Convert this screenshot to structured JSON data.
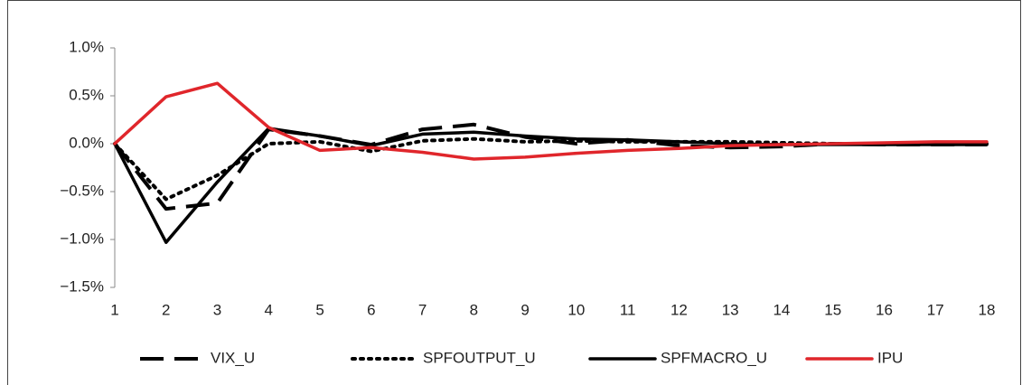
{
  "chart_data": {
    "type": "line",
    "categories": [
      "1",
      "2",
      "3",
      "4",
      "5",
      "6",
      "7",
      "8",
      "9",
      "10",
      "11",
      "12",
      "13",
      "14",
      "15",
      "16",
      "17",
      "18"
    ],
    "series": [
      {
        "name": "VIX_U",
        "color": "#000000",
        "line_style": "dashed",
        "values": [
          0,
          -0.68,
          -0.62,
          0.15,
          0.08,
          -0.01,
          0.15,
          0.2,
          0.07,
          0.0,
          0.04,
          -0.02,
          -0.04,
          -0.03,
          0.0,
          -0.01,
          -0.01,
          -0.01
        ]
      },
      {
        "name": "SPFOUTPUT_U",
        "color": "#000000",
        "line_style": "dotted",
        "values": [
          0,
          -0.58,
          -0.33,
          0.0,
          0.02,
          -0.08,
          0.03,
          0.05,
          0.02,
          0.03,
          0.02,
          0.02,
          0.02,
          0.01,
          0.0,
          0.0,
          0.0,
          0.0
        ]
      },
      {
        "name": "SPFMACRO_U",
        "color": "#000000",
        "line_style": "solid",
        "values": [
          0,
          -1.03,
          -0.4,
          0.16,
          0.08,
          -0.02,
          0.1,
          0.12,
          0.08,
          0.05,
          0.04,
          0.02,
          0.0,
          -0.01,
          -0.01,
          -0.01,
          -0.01,
          -0.01
        ]
      },
      {
        "name": "IPU",
        "color": "#e0262b",
        "line_style": "solid",
        "values": [
          0,
          0.49,
          0.63,
          0.17,
          -0.07,
          -0.04,
          -0.09,
          -0.16,
          -0.14,
          -0.1,
          -0.07,
          -0.05,
          -0.02,
          -0.01,
          0.0,
          0.01,
          0.02,
          0.02
        ]
      }
    ],
    "ylim": [
      -1.5,
      1.0
    ],
    "yticks": [
      {
        "value": -1.5,
        "label": "−1.5%"
      },
      {
        "value": -1.0,
        "label": "−1.0%"
      },
      {
        "value": -0.5,
        "label": "−0.5%"
      },
      {
        "value": 0.0,
        "label": "0.0%"
      },
      {
        "value": 0.5,
        "label": "0.5%"
      },
      {
        "value": 1.0,
        "label": "1.0%"
      }
    ],
    "grid": false,
    "legend": "bottom"
  }
}
